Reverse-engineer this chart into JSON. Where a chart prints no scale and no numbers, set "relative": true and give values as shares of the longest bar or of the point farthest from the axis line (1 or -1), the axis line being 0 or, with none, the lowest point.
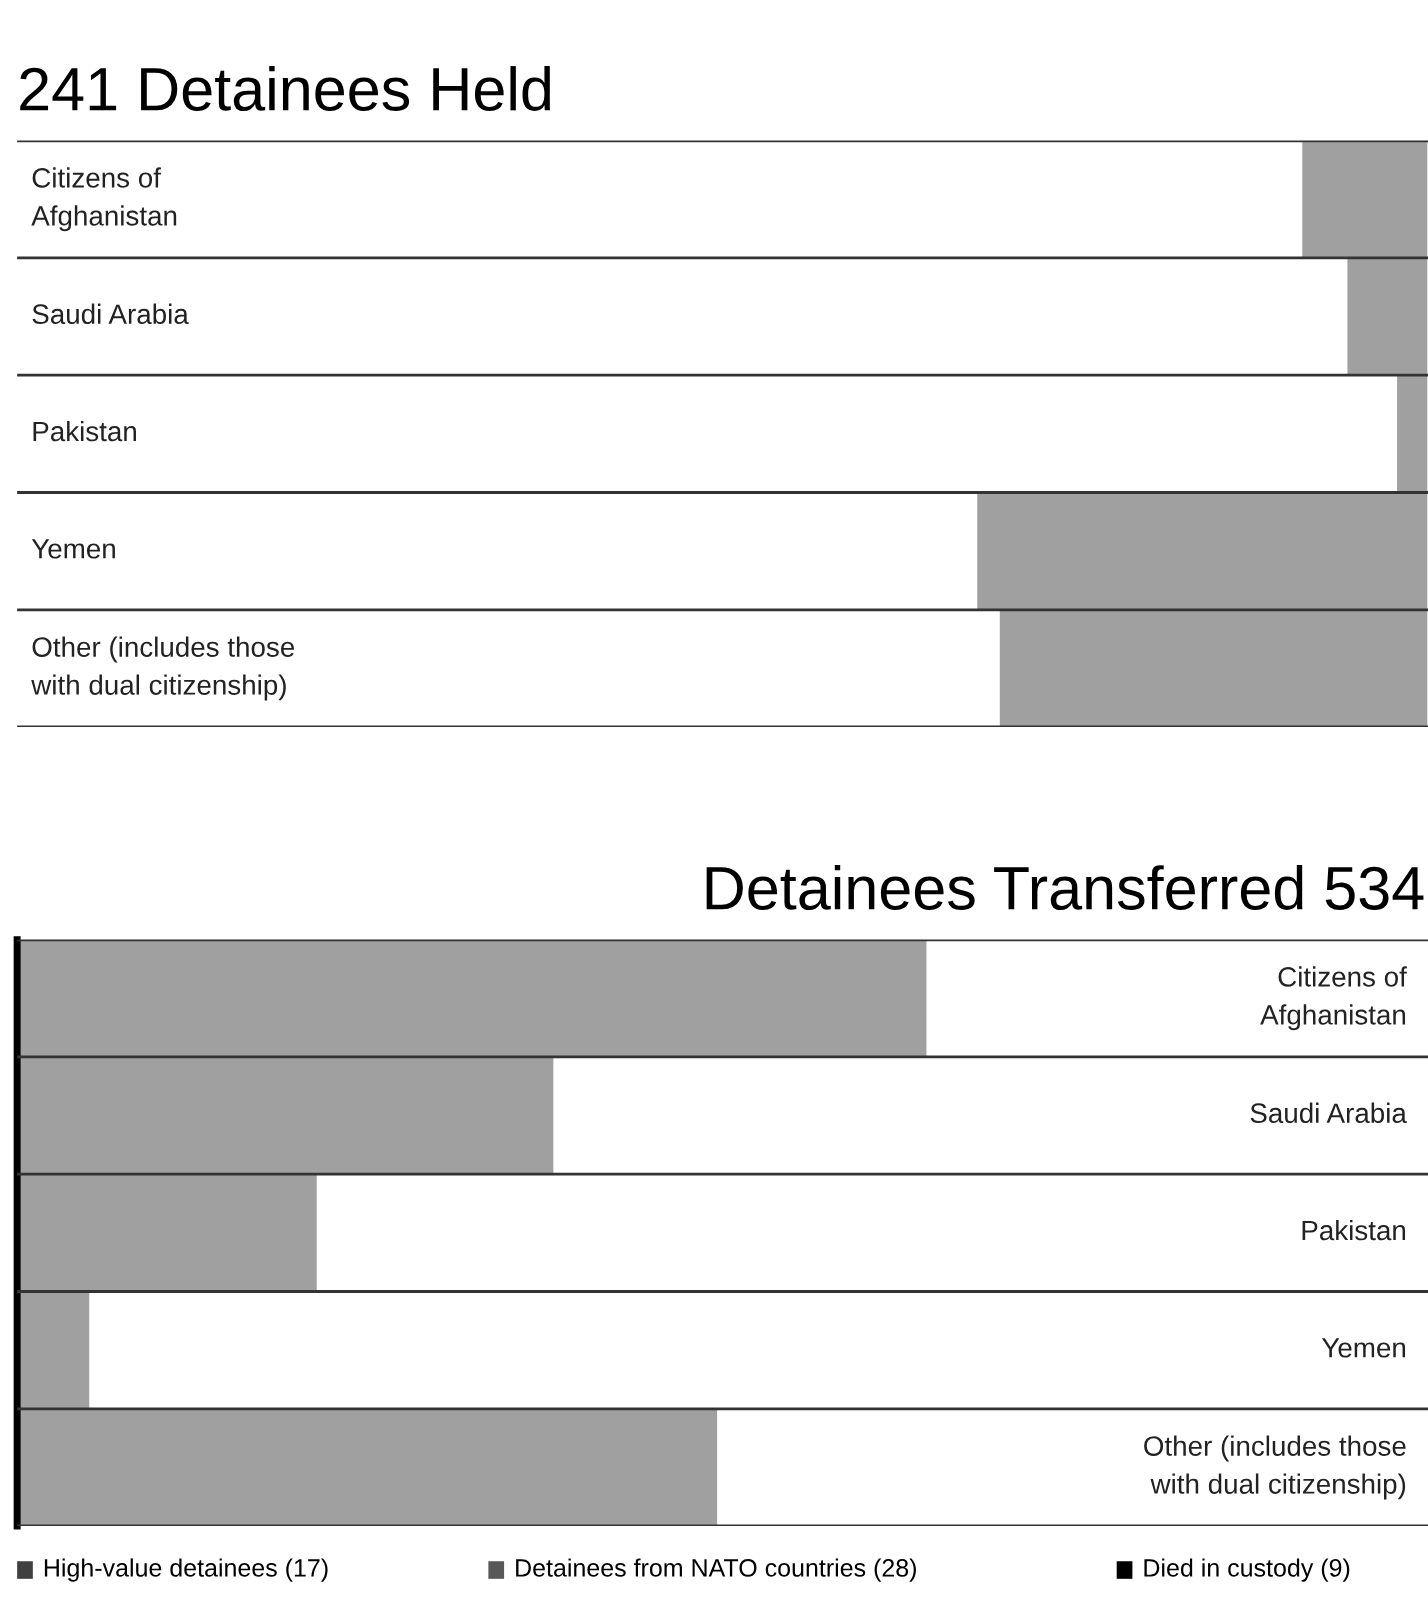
{
  "chart_data": [
    {
      "type": "bar",
      "orientation": "horizontal",
      "relative": true,
      "title": "241 Detainees Held",
      "categories": [
        "Citizens of\nAfghanistan",
        "Saudi Arabia",
        "Pakistan",
        "Yemen",
        "Other (includes those\nwith dual citizenship)"
      ],
      "values": [
        0.28,
        0.18,
        0.07,
        1,
        0.95
      ],
      "color": "#a0a0a0"
    },
    {
      "type": "bar",
      "orientation": "horizontal",
      "relative": true,
      "title": "Detainees Transferred 534",
      "categories": [
        "Citizens of\nAfghanistan",
        "Saudi Arabia",
        "Pakistan",
        "Yemen",
        "Other (includes those\nwith dual citizenship)"
      ],
      "values": [
        1,
        0.59,
        0.33,
        0.08,
        0.77
      ],
      "color": "#a0a0a0",
      "annotations": [
        "High-value detainees (17)",
        "Detainees from NATO countries (28)",
        "Died in custody (9)"
      ]
    }
  ]
}
